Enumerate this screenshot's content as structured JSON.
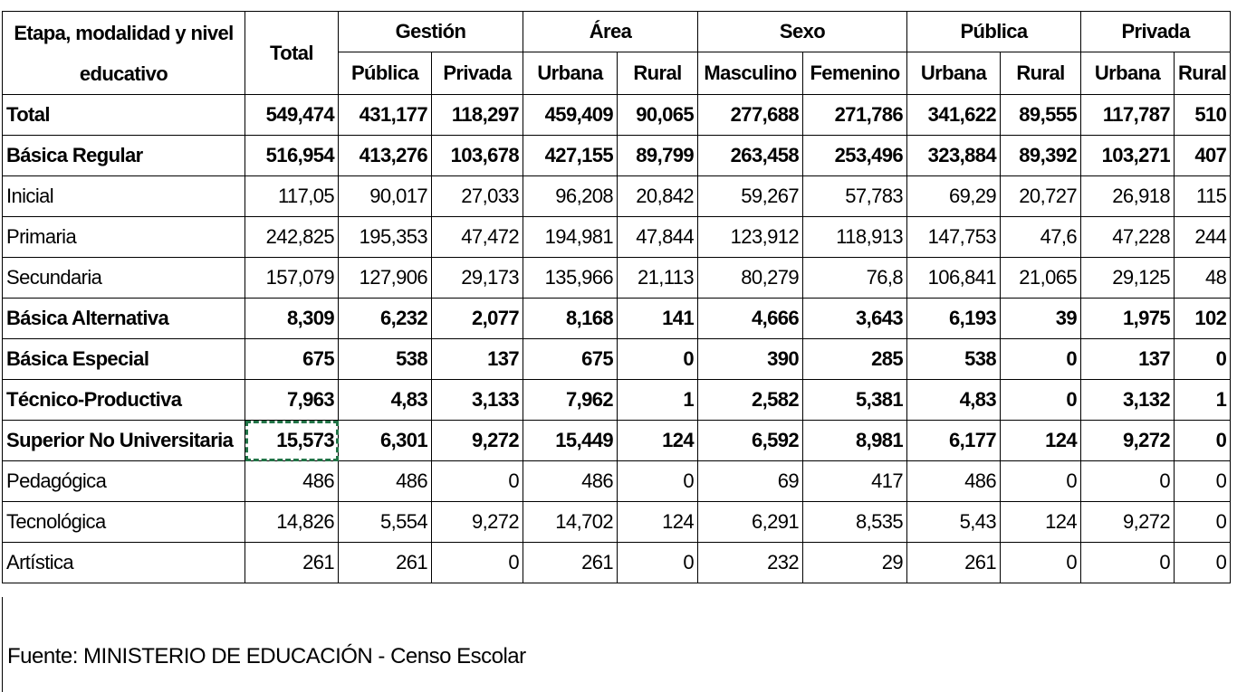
{
  "table": {
    "header": {
      "stub": "Etapa, modalidad y nivel educativo",
      "total": "Total",
      "groups": [
        "Gestión",
        "Área",
        "Sexo",
        "Pública",
        "Privada"
      ],
      "columns": [
        "Pública",
        "Privada",
        "Urbana",
        "Rural",
        "Masculino",
        "Femenino",
        "Urbana",
        "Rural",
        "Urbana",
        "Rural"
      ]
    },
    "rows": [
      {
        "label": "Total",
        "bold": true,
        "values": [
          "549,474",
          "431,177",
          "118,297",
          "459,409",
          "90,065",
          "277,688",
          "271,786",
          "341,622",
          "89,555",
          "117,787",
          "510"
        ]
      },
      {
        "label": "Básica Regular",
        "bold": true,
        "values": [
          "516,954",
          "413,276",
          "103,678",
          "427,155",
          "89,799",
          "263,458",
          "253,496",
          "323,884",
          "89,392",
          "103,271",
          "407"
        ]
      },
      {
        "label": "Inicial",
        "bold": false,
        "values": [
          "117,05",
          "90,017",
          "27,033",
          "96,208",
          "20,842",
          "59,267",
          "57,783",
          "69,29",
          "20,727",
          "26,918",
          "115"
        ]
      },
      {
        "label": "Primaria",
        "bold": false,
        "values": [
          "242,825",
          "195,353",
          "47,472",
          "194,981",
          "47,844",
          "123,912",
          "118,913",
          "147,753",
          "47,6",
          "47,228",
          "244"
        ]
      },
      {
        "label": "Secundaria",
        "bold": false,
        "values": [
          "157,079",
          "127,906",
          "29,173",
          "135,966",
          "21,113",
          "80,279",
          "76,8",
          "106,841",
          "21,065",
          "29,125",
          "48"
        ]
      },
      {
        "label": "Básica Alternativa",
        "bold": true,
        "values": [
          "8,309",
          "6,232",
          "2,077",
          "8,168",
          "141",
          "4,666",
          "3,643",
          "6,193",
          "39",
          "1,975",
          "102"
        ]
      },
      {
        "label": "Básica Especial",
        "bold": true,
        "values": [
          "675",
          "538",
          "137",
          "675",
          "0",
          "390",
          "285",
          "538",
          "0",
          "137",
          "0"
        ]
      },
      {
        "label": "Técnico-Productiva",
        "bold": true,
        "values": [
          "7,963",
          "4,83",
          "3,133",
          "7,962",
          "1",
          "2,582",
          "5,381",
          "4,83",
          "0",
          "3,132",
          "1"
        ]
      },
      {
        "label": "Superior No Universitaria",
        "bold": true,
        "values": [
          "15,573",
          "6,301",
          "9,272",
          "15,449",
          "124",
          "6,592",
          "8,981",
          "6,177",
          "124",
          "9,272",
          "0"
        ]
      },
      {
        "label": "Pedagógica",
        "bold": false,
        "values": [
          "486",
          "486",
          "0",
          "486",
          "0",
          "69",
          "417",
          "486",
          "0",
          "0",
          "0"
        ]
      },
      {
        "label": "Tecnológica",
        "bold": false,
        "values": [
          "14,826",
          "5,554",
          "9,272",
          "14,702",
          "124",
          "6,291",
          "8,535",
          "5,43",
          "124",
          "9,272",
          "0"
        ]
      },
      {
        "label": "Artística",
        "bold": false,
        "values": [
          "261",
          "261",
          "0",
          "261",
          "0",
          "232",
          "29",
          "261",
          "0",
          "0",
          "0"
        ]
      }
    ]
  },
  "source": "Fuente:  MINISTERIO DE EDUCACIÓN - Censo Escolar"
}
